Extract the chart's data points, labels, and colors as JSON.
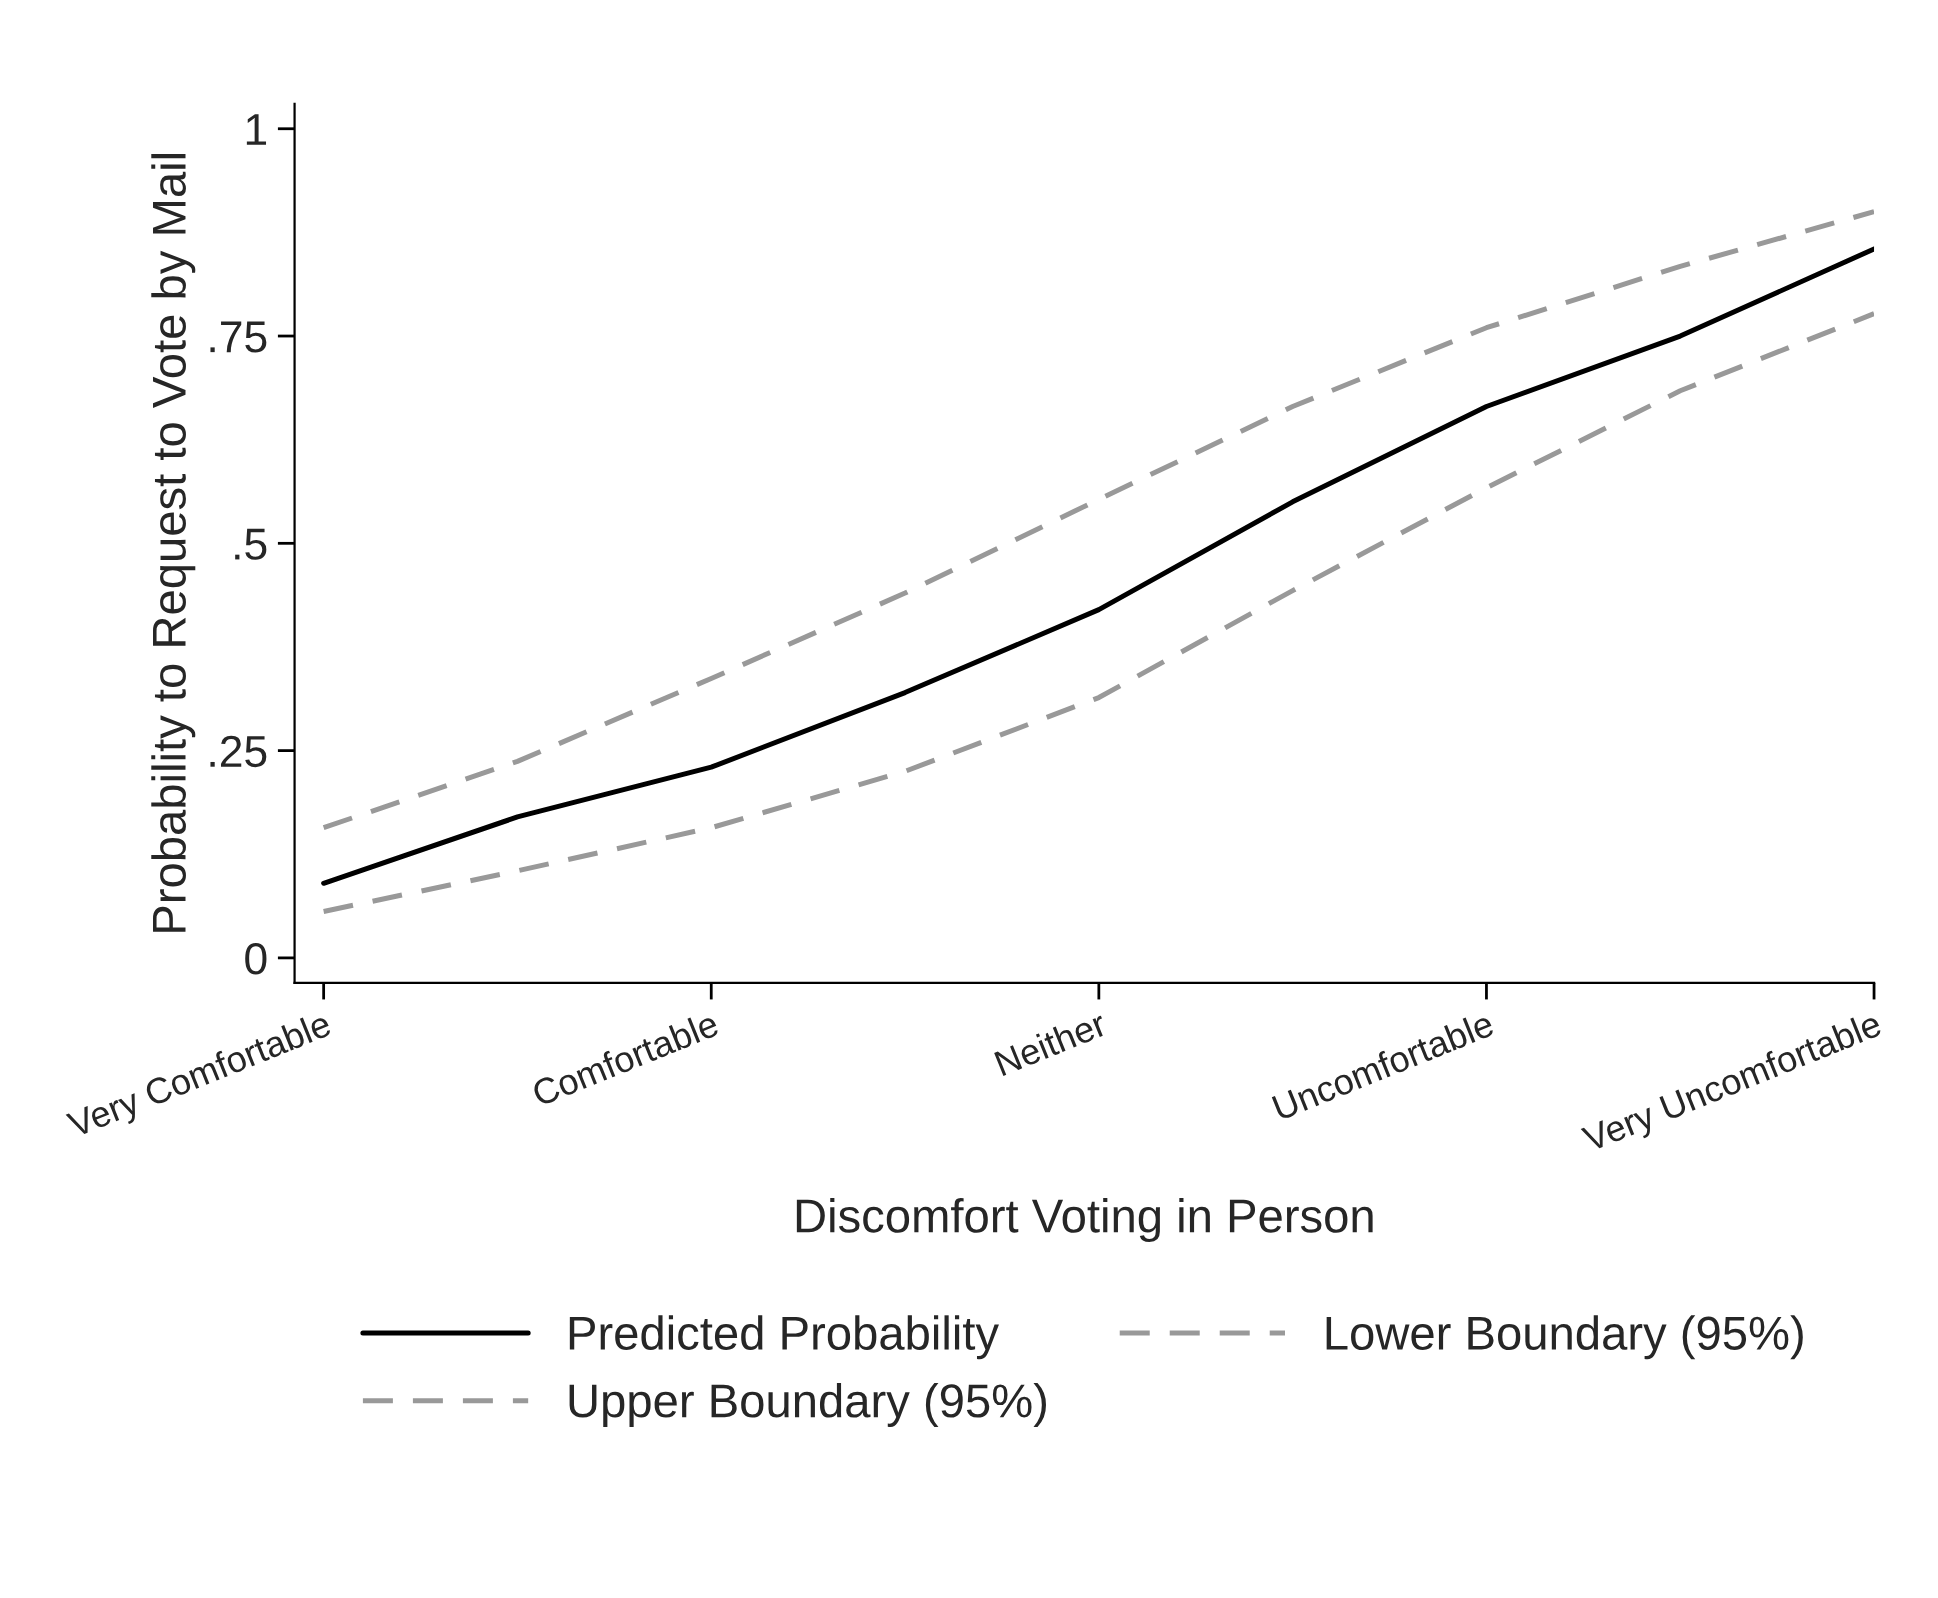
{
  "chart_data": {
    "type": "line",
    "xlabel": "Discomfort Voting in Person",
    "ylabel": "Probability to Request to Vote by Mail",
    "categories": [
      "Very Comfortable",
      null,
      "Comfortable",
      null,
      "Neither",
      null,
      "Uncomfortable",
      null,
      "Very Uncomfortable"
    ],
    "series": [
      {
        "name": "Predicted Probability",
        "color": "#000000",
        "line_style": "solid",
        "values": [
          0.09,
          0.17,
          0.23,
          0.32,
          0.42,
          0.55,
          0.665,
          0.75,
          0.855
        ]
      },
      {
        "name": "Lower Boundary (95%)",
        "color": "#999999",
        "line_style": "dashed",
        "values": [
          0.056,
          0.105,
          0.157,
          0.225,
          0.314,
          0.443,
          0.567,
          0.684,
          0.777
        ]
      },
      {
        "name": "Upper Boundary (95%)",
        "color": "#999999",
        "line_style": "dashed",
        "values": [
          0.157,
          0.237,
          0.337,
          0.44,
          0.553,
          0.665,
          0.76,
          0.834,
          0.9
        ]
      }
    ],
    "ylim": [
      -0.03,
      1.03
    ],
    "yticks": [
      {
        "value": 0,
        "label": "0"
      },
      {
        "value": 0.25,
        "label": ".25"
      },
      {
        "value": 0.5,
        "label": ".5"
      },
      {
        "value": 0.75,
        "label": ".75"
      },
      {
        "value": 1,
        "label": "1"
      }
    ],
    "grid": false,
    "legend": "bottom",
    "marker": "none"
  }
}
